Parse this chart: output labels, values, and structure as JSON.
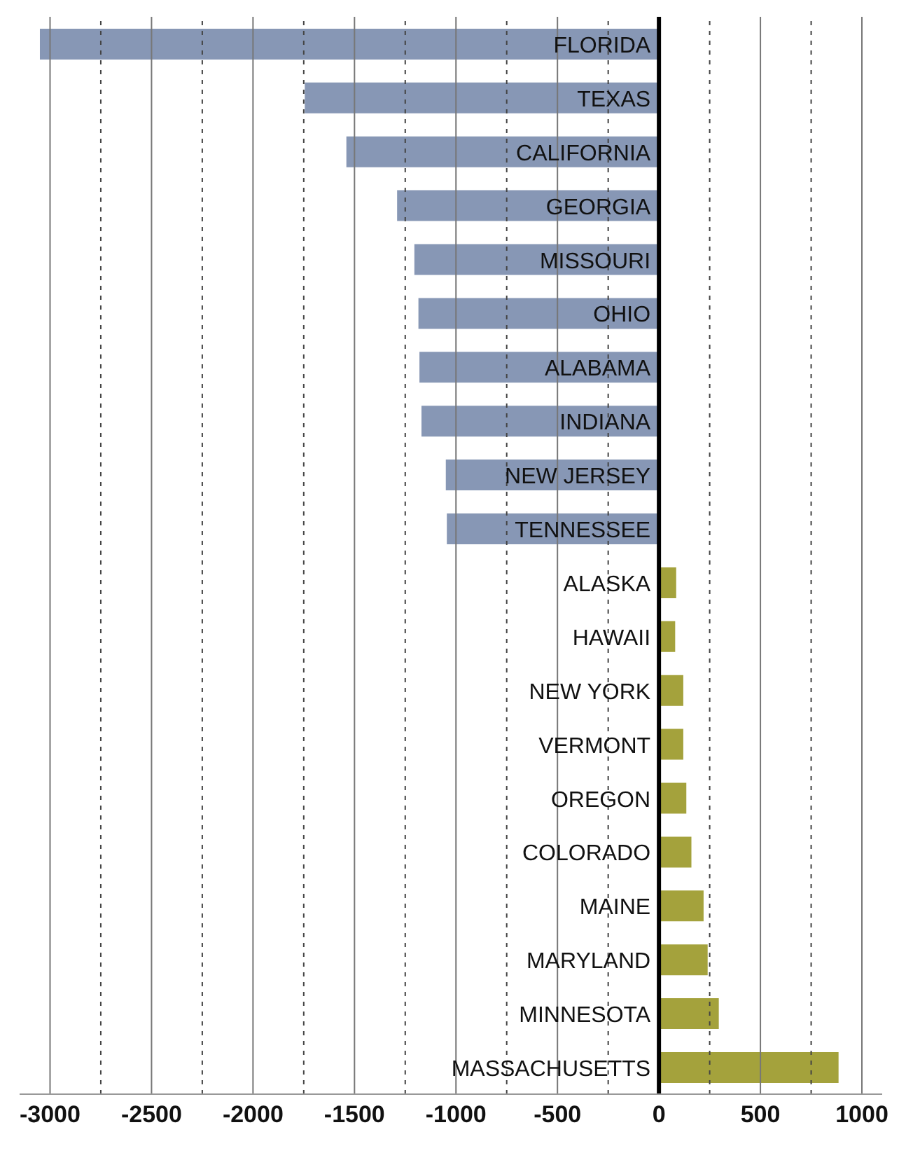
{
  "chart_data": {
    "type": "bar",
    "orientation": "horizontal",
    "categories": [
      "FLORIDA",
      "TEXAS",
      "CALIFORNIA",
      "GEORGIA",
      "MISSOURI",
      "OHIO",
      "ALABAMA",
      "INDIANA",
      "NEW JERSEY",
      "TENNESSEE",
      "ALASKA",
      "HAWAII",
      "NEW YORK",
      "VERMONT",
      "OREGON",
      "COLORADO",
      "MAINE",
      "MARYLAND",
      "MINNESOTA",
      "MASSACHUSETTS"
    ],
    "values": [
      -3050,
      -1745,
      -1540,
      -1290,
      -1205,
      -1185,
      -1180,
      -1170,
      -1050,
      -1045,
      85,
      80,
      120,
      120,
      135,
      160,
      220,
      240,
      295,
      885
    ],
    "colors": [
      "#8797b5",
      "#8797b5",
      "#8797b5",
      "#8797b5",
      "#8797b5",
      "#8797b5",
      "#8797b5",
      "#8797b5",
      "#8797b5",
      "#8797b5",
      "#a4a23c",
      "#a4a23c",
      "#a4a23c",
      "#a4a23c",
      "#a4a23c",
      "#a4a23c",
      "#a4a23c",
      "#a4a23c",
      "#a4a23c",
      "#a4a23c"
    ],
    "xlim": [
      -3150,
      1100
    ],
    "xticks": [
      -3000,
      {
        "value": -2750,
        "label": null
      },
      -2500,
      {
        "value": -2250,
        "label": null
      },
      -2000,
      {
        "value": -1750,
        "label": null
      },
      -1500,
      {
        "value": -1250,
        "label": null
      },
      -1000,
      {
        "value": -750,
        "label": null
      },
      -500,
      {
        "value": -250,
        "label": null
      },
      0,
      {
        "value": 250,
        "label": null
      },
      500,
      {
        "value": 750,
        "label": null
      },
      1000
    ],
    "grid": "x"
  }
}
